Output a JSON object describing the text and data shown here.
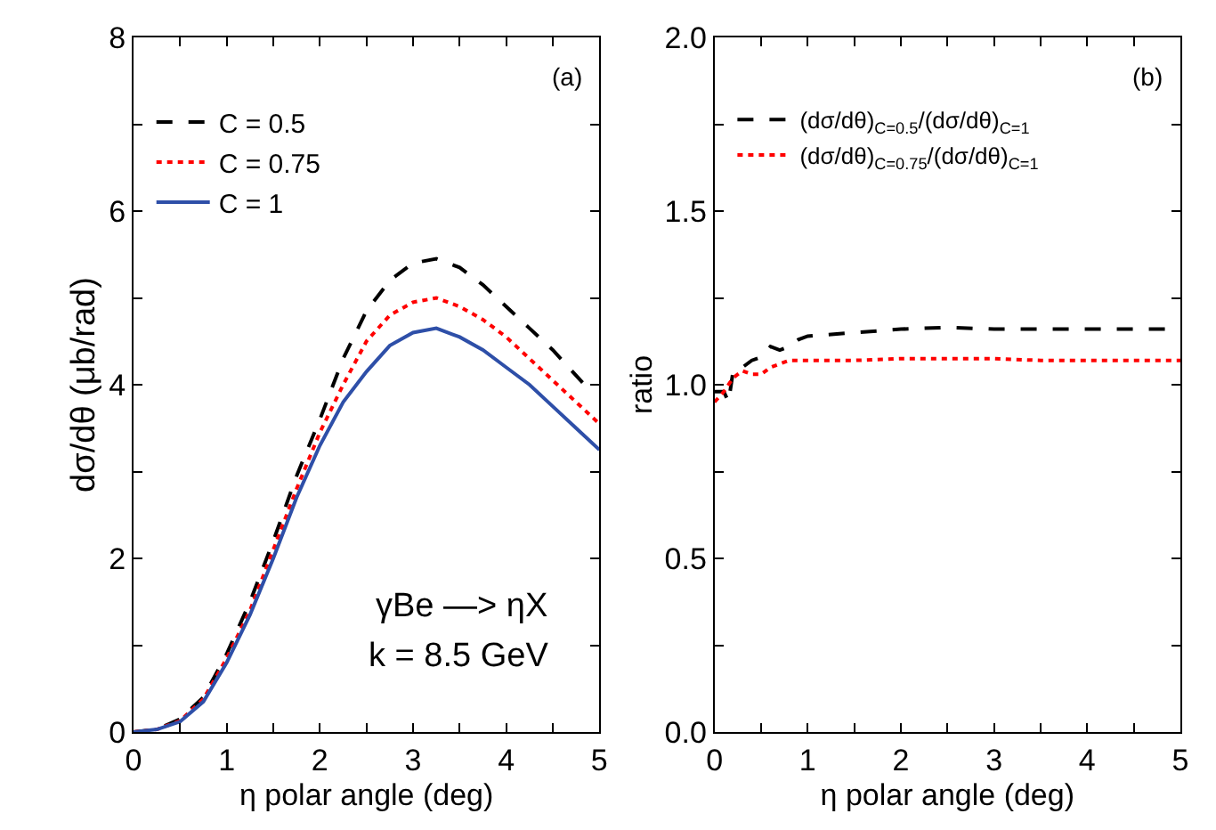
{
  "chart_data": [
    {
      "type": "line",
      "xlabel": "η polar angle (deg)",
      "ylabel": "dσ/dθ (μb/rad)",
      "xlim": [
        0,
        5
      ],
      "ylim": [
        0,
        8
      ],
      "xticks": [
        0,
        {
          "value": 0.5,
          "label": null
        },
        1,
        {
          "value": 1.5,
          "label": null
        },
        2,
        {
          "value": 2.5,
          "label": null
        },
        3,
        {
          "value": 3.5,
          "label": null
        },
        4,
        {
          "value": 4.5,
          "label": null
        },
        5
      ],
      "yticks": [
        0,
        {
          "value": 1,
          "label": null
        },
        2,
        {
          "value": 3,
          "label": null
        },
        4,
        {
          "value": 5,
          "label": null
        },
        6,
        {
          "value": 7,
          "label": null
        },
        8
      ],
      "legend": "top left",
      "marker": "none",
      "annotations": [
        "(a)",
        "γBe —> ηX",
        "k = 8.5 GeV"
      ],
      "series": [
        {
          "name": "C = 0.5",
          "color": "#000000",
          "line_style": "dashed",
          "x": [
            0,
            0.25,
            0.5,
            0.75,
            1.0,
            1.25,
            1.5,
            1.75,
            2.0,
            2.25,
            2.5,
            2.75,
            3.0,
            3.25,
            3.5,
            3.75,
            4.0,
            4.25,
            4.5,
            4.84
          ],
          "values": [
            0,
            0.03,
            0.15,
            0.4,
            0.9,
            1.5,
            2.2,
            2.95,
            3.6,
            4.3,
            4.85,
            5.2,
            5.4,
            5.45,
            5.35,
            5.15,
            4.9,
            4.65,
            4.4,
            4.0
          ]
        },
        {
          "name": "C = 0.75",
          "color": "#ff0000",
          "line_style": "dotted",
          "x": [
            0,
            0.25,
            0.5,
            0.75,
            1.0,
            1.25,
            1.5,
            1.75,
            2.0,
            2.25,
            2.5,
            2.75,
            3.0,
            3.25,
            3.5,
            3.75,
            4.0,
            4.25,
            4.5,
            4.75,
            5.0
          ],
          "values": [
            0,
            0.03,
            0.13,
            0.38,
            0.85,
            1.4,
            2.1,
            2.8,
            3.45,
            4.0,
            4.5,
            4.8,
            4.95,
            5.0,
            4.9,
            4.75,
            4.55,
            4.3,
            4.05,
            3.8,
            3.55
          ]
        },
        {
          "name": "C = 1",
          "color": "#2e4fa8",
          "line_style": "solid",
          "x": [
            0,
            0.25,
            0.5,
            0.75,
            1.0,
            1.25,
            1.5,
            1.75,
            2.0,
            2.25,
            2.5,
            2.75,
            3.0,
            3.25,
            3.5,
            3.75,
            4.0,
            4.25,
            4.5,
            4.75,
            5.0
          ],
          "values": [
            0,
            0.03,
            0.12,
            0.35,
            0.8,
            1.35,
            2.0,
            2.7,
            3.3,
            3.8,
            4.15,
            4.45,
            4.6,
            4.65,
            4.55,
            4.4,
            4.2,
            4.0,
            3.75,
            3.5,
            3.25
          ]
        }
      ]
    },
    {
      "type": "line",
      "xlabel": "η polar angle (deg)",
      "ylabel": "ratio",
      "xlim": [
        0,
        5
      ],
      "ylim": [
        0,
        2
      ],
      "xticks": [
        0,
        {
          "value": 0.5,
          "label": null
        },
        1,
        {
          "value": 1.5,
          "label": null
        },
        2,
        {
          "value": 2.5,
          "label": null
        },
        3,
        {
          "value": 3.5,
          "label": null
        },
        4,
        {
          "value": 4.5,
          "label": null
        },
        5
      ],
      "yticks": [
        "0.0",
        {
          "value": 0.25,
          "label": null
        },
        {
          "value": 0.5,
          "label": "0.5"
        },
        {
          "value": 0.75,
          "label": null
        },
        {
          "value": 1,
          "label": "1.0"
        },
        {
          "value": 1.25,
          "label": null
        },
        {
          "value": 1.5,
          "label": "1.5"
        },
        {
          "value": 1.75,
          "label": null
        },
        {
          "value": 2,
          "label": "2.0"
        }
      ],
      "legend": "top left",
      "marker": "none",
      "annotations": [
        "(b)"
      ],
      "series": [
        {
          "name": "(dσ/dθ)$_{C=0.5}$/(dσ/dθ)$_{C=1}$",
          "color": "#000000",
          "line_style": "dashed",
          "x": [
            0,
            0.1,
            0.15,
            0.2,
            0.3,
            0.4,
            0.5,
            0.6,
            0.7,
            0.8,
            0.9,
            1.0,
            1.5,
            2.0,
            2.5,
            3.0,
            3.5,
            4.0,
            4.5,
            5.0
          ],
          "values": [
            0.98,
            0.98,
            0.95,
            1.04,
            1.05,
            1.07,
            1.08,
            1.11,
            1.1,
            1.11,
            1.13,
            1.14,
            1.15,
            1.16,
            1.165,
            1.16,
            1.16,
            1.16,
            1.16,
            1.16
          ]
        },
        {
          "name": "(dσ/dθ)$_{C=0.75}$/(dσ/dθ)$_{C=1}$",
          "color": "#ff0000",
          "line_style": "dotted",
          "x": [
            0,
            0.1,
            0.2,
            0.3,
            0.4,
            0.5,
            0.6,
            0.7,
            0.8,
            1.0,
            1.5,
            2.0,
            2.5,
            3.0,
            3.5,
            4.0,
            4.5,
            5.0
          ],
          "values": [
            0.95,
            0.98,
            1.02,
            1.04,
            1.03,
            1.03,
            1.05,
            1.06,
            1.07,
            1.07,
            1.07,
            1.075,
            1.075,
            1.075,
            1.07,
            1.07,
            1.07,
            1.07
          ]
        }
      ]
    }
  ]
}
